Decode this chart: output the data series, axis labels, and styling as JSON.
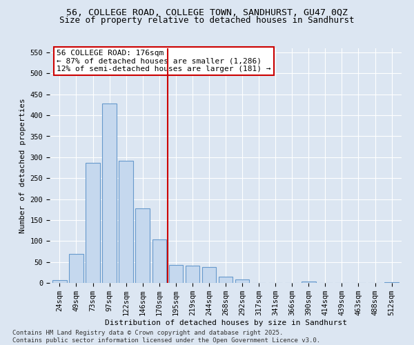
{
  "title_line1": "56, COLLEGE ROAD, COLLEGE TOWN, SANDHURST, GU47 0QZ",
  "title_line2": "Size of property relative to detached houses in Sandhurst",
  "xlabel": "Distribution of detached houses by size in Sandhurst",
  "ylabel": "Number of detached properties",
  "bar_labels": [
    "24sqm",
    "49sqm",
    "73sqm",
    "97sqm",
    "122sqm",
    "146sqm",
    "170sqm",
    "195sqm",
    "219sqm",
    "244sqm",
    "268sqm",
    "292sqm",
    "317sqm",
    "341sqm",
    "366sqm",
    "390sqm",
    "414sqm",
    "439sqm",
    "463sqm",
    "488sqm",
    "512sqm"
  ],
  "bar_values": [
    7,
    70,
    287,
    428,
    291,
    178,
    104,
    43,
    42,
    38,
    15,
    8,
    0,
    0,
    0,
    4,
    0,
    0,
    0,
    0,
    2
  ],
  "bar_color": "#c5d8ee",
  "bar_edge_color": "#6699cc",
  "vline_color": "#cc0000",
  "vline_position": 6.5,
  "annotation_title": "56 COLLEGE ROAD: 176sqm",
  "annotation_line1": "← 87% of detached houses are smaller (1,286)",
  "annotation_line2": "12% of semi-detached houses are larger (181) →",
  "annotation_box_facecolor": "#ffffff",
  "annotation_box_edgecolor": "#cc0000",
  "ylim": [
    0,
    560
  ],
  "yticks": [
    0,
    50,
    100,
    150,
    200,
    250,
    300,
    350,
    400,
    450,
    500,
    550
  ],
  "background_color": "#dce6f2",
  "plot_bg_color": "#dce6f2",
  "grid_color": "#ffffff",
  "footer_line1": "Contains HM Land Registry data © Crown copyright and database right 2025.",
  "footer_line2": "Contains public sector information licensed under the Open Government Licence v3.0.",
  "title_fontsize": 9.5,
  "subtitle_fontsize": 9,
  "axis_label_fontsize": 8,
  "tick_fontsize": 7.5,
  "annotation_fontsize": 8,
  "footer_fontsize": 6.5
}
